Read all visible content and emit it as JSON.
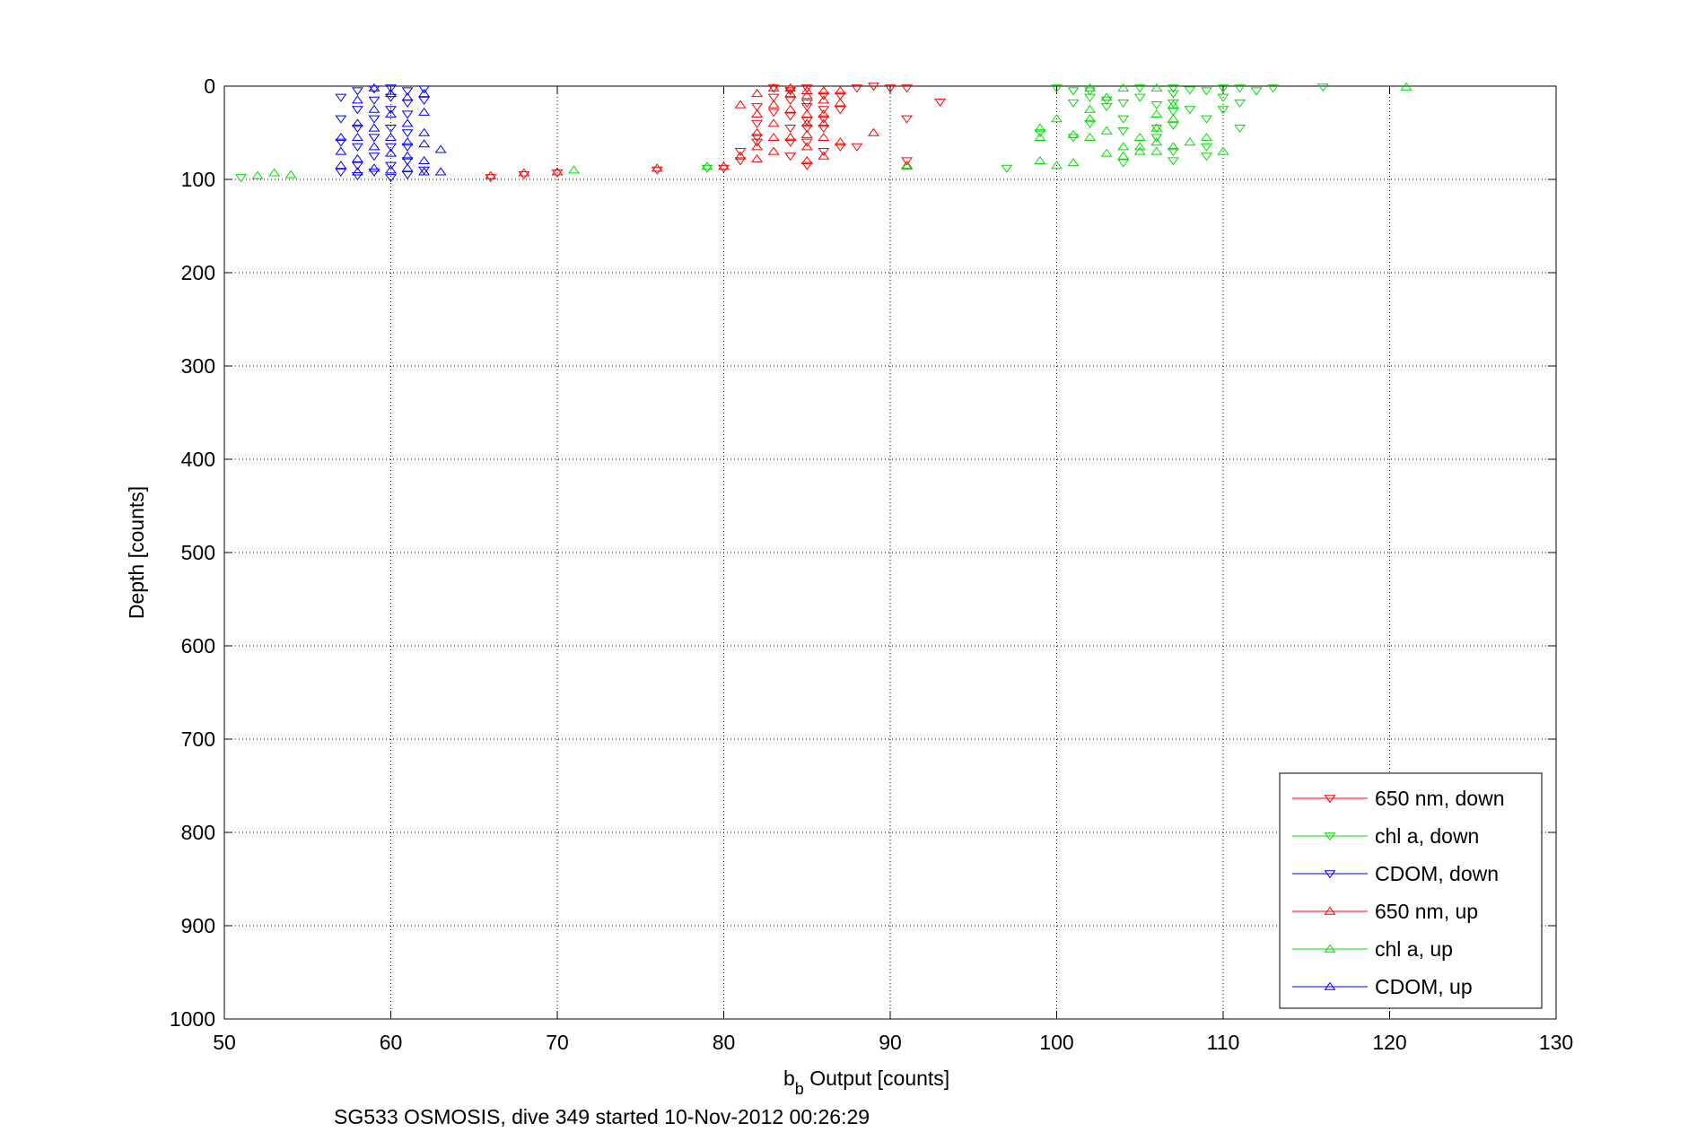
{
  "chart_data": {
    "type": "scatter",
    "xlabel_main": "b",
    "xlabel_sub": "b",
    "xlabel_rest": " Output [counts]",
    "ylabel": "Depth [counts]",
    "footer": "SG533 OSMOSIS, dive 349 started 10-Nov-2012 00:26:29",
    "xlim": [
      50,
      130
    ],
    "ylim": [
      0,
      1000
    ],
    "y_reversed": true,
    "x_ticks": [
      50,
      60,
      70,
      80,
      90,
      100,
      110,
      120,
      130
    ],
    "y_ticks": [
      0,
      100,
      200,
      300,
      400,
      500,
      600,
      700,
      800,
      900,
      1000
    ],
    "grid": true,
    "legend_position": "bottom-right",
    "series": [
      {
        "name": "650 nm, down",
        "color": "#ff0000",
        "marker": "triangle-down",
        "points": [
          [
            66,
            98
          ],
          [
            68,
            95
          ],
          [
            70,
            93
          ],
          [
            76,
            90
          ],
          [
            80,
            88
          ],
          [
            81,
            80
          ],
          [
            81,
            70
          ],
          [
            82,
            60
          ],
          [
            82,
            55
          ],
          [
            82,
            40
          ],
          [
            82,
            22
          ],
          [
            83,
            12
          ],
          [
            83,
            2
          ],
          [
            84,
            5
          ],
          [
            84,
            3
          ],
          [
            84,
            15
          ],
          [
            84,
            32
          ],
          [
            84,
            45
          ],
          [
            84,
            60
          ],
          [
            84,
            75
          ],
          [
            85,
            2
          ],
          [
            85,
            18
          ],
          [
            85,
            22
          ],
          [
            85,
            45
          ],
          [
            85,
            60
          ],
          [
            85,
            85
          ],
          [
            86,
            10
          ],
          [
            86,
            25
          ],
          [
            86,
            35
          ],
          [
            86,
            45
          ],
          [
            86,
            70
          ],
          [
            87,
            10
          ],
          [
            87,
            25
          ],
          [
            87,
            65
          ],
          [
            88,
            65
          ],
          [
            88,
            2
          ],
          [
            89,
            0
          ],
          [
            90,
            2
          ],
          [
            91,
            2
          ],
          [
            91,
            35
          ],
          [
            91,
            80
          ],
          [
            93,
            17
          ],
          [
            85,
            37
          ],
          [
            83,
            28
          ]
        ]
      },
      {
        "name": "chl a, down",
        "color": "#00dd00",
        "marker": "triangle-down",
        "points": [
          [
            51,
            98
          ],
          [
            79,
            88
          ],
          [
            97,
            88
          ],
          [
            100,
            2
          ],
          [
            101,
            5
          ],
          [
            101,
            18
          ],
          [
            102,
            5
          ],
          [
            102,
            12
          ],
          [
            103,
            15
          ],
          [
            103,
            22
          ],
          [
            104,
            18
          ],
          [
            104,
            35
          ],
          [
            104,
            48
          ],
          [
            104,
            82
          ],
          [
            105,
            2
          ],
          [
            105,
            12
          ],
          [
            106,
            20
          ],
          [
            106,
            45
          ],
          [
            106,
            55
          ],
          [
            107,
            2
          ],
          [
            107,
            8
          ],
          [
            107,
            18
          ],
          [
            107,
            27
          ],
          [
            107,
            42
          ],
          [
            107,
            70
          ],
          [
            107,
            80
          ],
          [
            108,
            4
          ],
          [
            108,
            25
          ],
          [
            109,
            5
          ],
          [
            109,
            35
          ],
          [
            109,
            65
          ],
          [
            109,
            75
          ],
          [
            110,
            2
          ],
          [
            110,
            12
          ],
          [
            110,
            25
          ],
          [
            111,
            2
          ],
          [
            111,
            18
          ],
          [
            111,
            45
          ],
          [
            112,
            5
          ],
          [
            113,
            2
          ],
          [
            116,
            1
          ],
          [
            99,
            50
          ],
          [
            101,
            55
          ],
          [
            102,
            40
          ]
        ]
      },
      {
        "name": "CDOM, down",
        "color": "#0000ff",
        "marker": "triangle-down",
        "points": [
          [
            57,
            12
          ],
          [
            57,
            35
          ],
          [
            57,
            60
          ],
          [
            57,
            92
          ],
          [
            58,
            5
          ],
          [
            58,
            25
          ],
          [
            58,
            45
          ],
          [
            58,
            65
          ],
          [
            58,
            85
          ],
          [
            58,
            96
          ],
          [
            59,
            3
          ],
          [
            59,
            15
          ],
          [
            59,
            35
          ],
          [
            59,
            55
          ],
          [
            59,
            75
          ],
          [
            59,
            92
          ],
          [
            60,
            2
          ],
          [
            60,
            12
          ],
          [
            60,
            25
          ],
          [
            60,
            45
          ],
          [
            60,
            65
          ],
          [
            60,
            85
          ],
          [
            60,
            98
          ],
          [
            61,
            5
          ],
          [
            61,
            18
          ],
          [
            61,
            30
          ],
          [
            61,
            50
          ],
          [
            61,
            65
          ],
          [
            61,
            80
          ],
          [
            61,
            95
          ],
          [
            62,
            3
          ],
          [
            62,
            15
          ],
          [
            62,
            90
          ]
        ]
      },
      {
        "name": "650 nm, up",
        "color": "#ff0000",
        "marker": "triangle-up",
        "points": [
          [
            66,
            96
          ],
          [
            68,
            93
          ],
          [
            70,
            92
          ],
          [
            76,
            88
          ],
          [
            80,
            86
          ],
          [
            81,
            75
          ],
          [
            81,
            20
          ],
          [
            82,
            8
          ],
          [
            82,
            30
          ],
          [
            82,
            50
          ],
          [
            82,
            65
          ],
          [
            82,
            78
          ],
          [
            83,
            2
          ],
          [
            83,
            20
          ],
          [
            83,
            40
          ],
          [
            83,
            55
          ],
          [
            83,
            70
          ],
          [
            84,
            2
          ],
          [
            84,
            8
          ],
          [
            84,
            25
          ],
          [
            84,
            55
          ],
          [
            85,
            5
          ],
          [
            85,
            10
          ],
          [
            85,
            30
          ],
          [
            85,
            40
          ],
          [
            85,
            52
          ],
          [
            85,
            65
          ],
          [
            85,
            80
          ],
          [
            86,
            5
          ],
          [
            86,
            15
          ],
          [
            86,
            30
          ],
          [
            86,
            40
          ],
          [
            86,
            55
          ],
          [
            86,
            75
          ],
          [
            87,
            5
          ],
          [
            87,
            18
          ],
          [
            87,
            60
          ],
          [
            89,
            50
          ],
          [
            91,
            85
          ]
        ]
      },
      {
        "name": "chl a, up",
        "color": "#00dd00",
        "marker": "triangle-up",
        "points": [
          [
            52,
            96
          ],
          [
            53,
            93
          ],
          [
            54,
            95
          ],
          [
            71,
            90
          ],
          [
            79,
            86
          ],
          [
            91,
            86
          ],
          [
            99,
            45
          ],
          [
            99,
            55
          ],
          [
            99,
            80
          ],
          [
            100,
            35
          ],
          [
            100,
            85
          ],
          [
            101,
            52
          ],
          [
            101,
            82
          ],
          [
            102,
            2
          ],
          [
            102,
            25
          ],
          [
            102,
            35
          ],
          [
            102,
            55
          ],
          [
            103,
            12
          ],
          [
            103,
            72
          ],
          [
            104,
            2
          ],
          [
            104,
            65
          ],
          [
            104,
            75
          ],
          [
            105,
            65
          ],
          [
            105,
            70
          ],
          [
            106,
            2
          ],
          [
            106,
            30
          ],
          [
            106,
            45
          ],
          [
            106,
            60
          ],
          [
            106,
            70
          ],
          [
            107,
            20
          ],
          [
            107,
            35
          ],
          [
            107,
            65
          ],
          [
            108,
            60
          ],
          [
            109,
            55
          ],
          [
            110,
            70
          ],
          [
            121,
            1
          ],
          [
            105,
            55
          ],
          [
            103,
            48
          ]
        ]
      },
      {
        "name": "CDOM, up",
        "color": "#0000ff",
        "marker": "triangle-up",
        "points": [
          [
            57,
            55
          ],
          [
            57,
            70
          ],
          [
            57,
            85
          ],
          [
            58,
            15
          ],
          [
            58,
            40
          ],
          [
            58,
            55
          ],
          [
            58,
            78
          ],
          [
            58,
            92
          ],
          [
            59,
            2
          ],
          [
            59,
            25
          ],
          [
            59,
            45
          ],
          [
            59,
            65
          ],
          [
            59,
            88
          ],
          [
            60,
            8
          ],
          [
            60,
            30
          ],
          [
            60,
            55
          ],
          [
            60,
            72
          ],
          [
            60,
            90
          ],
          [
            61,
            12
          ],
          [
            61,
            40
          ],
          [
            61,
            60
          ],
          [
            61,
            75
          ],
          [
            61,
            88
          ],
          [
            62,
            8
          ],
          [
            62,
            28
          ],
          [
            62,
            50
          ],
          [
            62,
            62
          ],
          [
            62,
            80
          ],
          [
            62,
            92
          ],
          [
            63,
            68
          ],
          [
            63,
            92
          ]
        ]
      }
    ]
  }
}
